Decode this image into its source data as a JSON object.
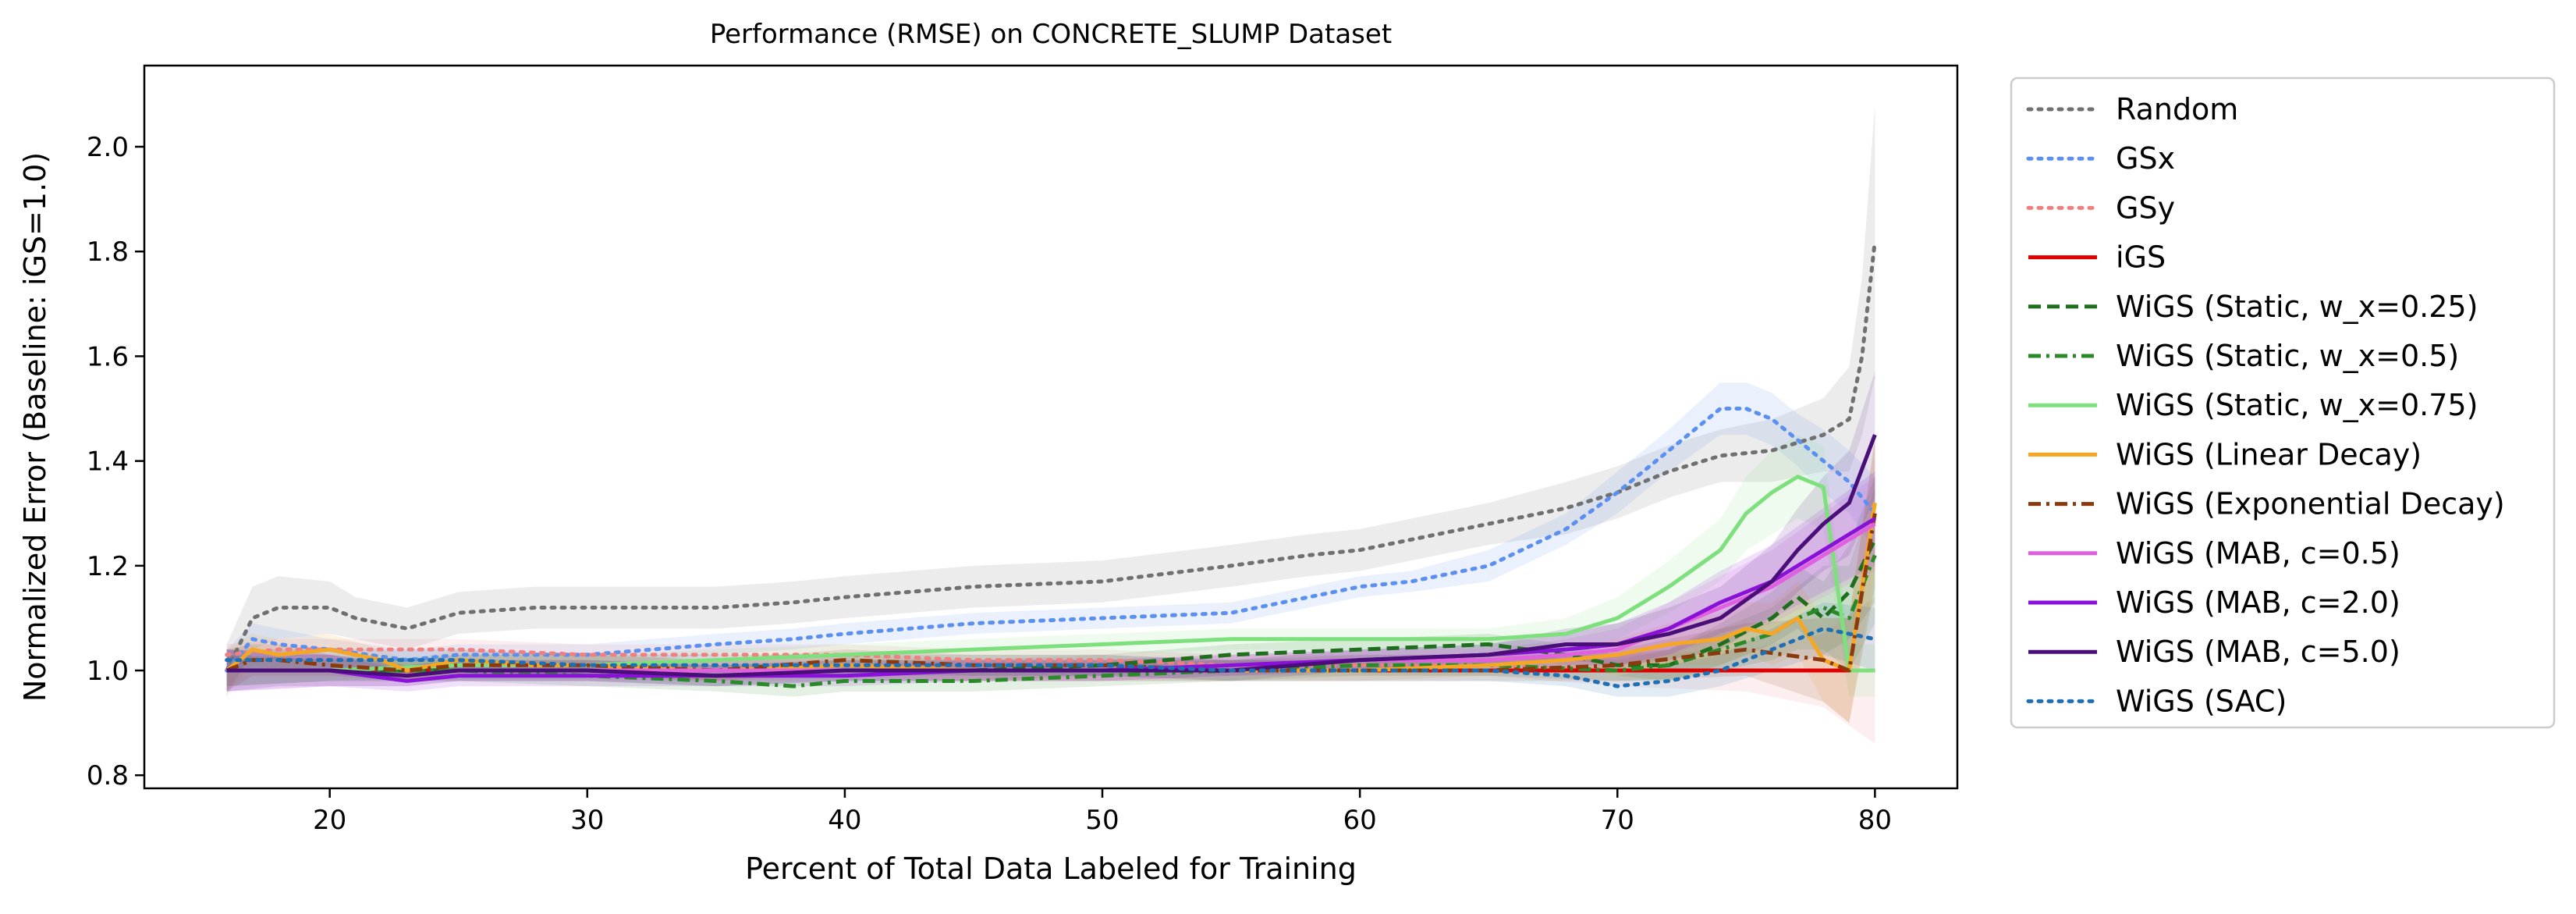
{
  "chart_data": {
    "type": "line",
    "title": "Performance (RMSE) on CONCRETE_SLUMP Dataset",
    "xlabel": "Percent of Total Data Labeled for Training",
    "ylabel": "Normalized Error (Baseline: iGS=1.0)",
    "xlim": [
      12.8,
      83.2
    ],
    "ylim": [
      0.775,
      2.155
    ],
    "xticks": [
      20,
      30,
      40,
      50,
      60,
      70,
      80
    ],
    "yticks": [
      0.8,
      1.0,
      1.2,
      1.4,
      1.6,
      1.8,
      2.0
    ],
    "legend_position": "outside-right",
    "grid": false,
    "series": [
      {
        "name": "Random",
        "color": "#707070",
        "dash": "dotted",
        "x": [
          16,
          17,
          18,
          20,
          21,
          23,
          25,
          28,
          30,
          35,
          38,
          40,
          45,
          50,
          55,
          58,
          60,
          62,
          65,
          68,
          70,
          72,
          74,
          76,
          78,
          79,
          79.5,
          80
        ],
        "y": [
          1.0,
          1.1,
          1.12,
          1.12,
          1.1,
          1.08,
          1.11,
          1.12,
          1.12,
          1.12,
          1.13,
          1.14,
          1.16,
          1.17,
          1.2,
          1.22,
          1.23,
          1.25,
          1.28,
          1.31,
          1.34,
          1.38,
          1.41,
          1.42,
          1.45,
          1.48,
          1.6,
          1.82
        ],
        "band": [
          0.05,
          0.06,
          0.06,
          0.05,
          0.04,
          0.04,
          0.04,
          0.04,
          0.04,
          0.04,
          0.04,
          0.04,
          0.04,
          0.04,
          0.04,
          0.04,
          0.04,
          0.04,
          0.04,
          0.05,
          0.05,
          0.05,
          0.05,
          0.06,
          0.07,
          0.1,
          0.15,
          0.26
        ]
      },
      {
        "name": "GSx",
        "color": "#5b8ff0",
        "dash": "dotted",
        "x": [
          16,
          17,
          18,
          20,
          23,
          25,
          28,
          30,
          35,
          38,
          40,
          45,
          50,
          55,
          58,
          60,
          62,
          65,
          68,
          70,
          72,
          74,
          75,
          76,
          77,
          78,
          79,
          80
        ],
        "y": [
          1.0,
          1.06,
          1.05,
          1.04,
          1.02,
          1.03,
          1.03,
          1.03,
          1.05,
          1.06,
          1.07,
          1.09,
          1.1,
          1.11,
          1.14,
          1.16,
          1.17,
          1.2,
          1.27,
          1.34,
          1.42,
          1.5,
          1.5,
          1.48,
          1.44,
          1.4,
          1.36,
          1.3
        ],
        "band": [
          0.04,
          0.03,
          0.03,
          0.02,
          0.02,
          0.02,
          0.02,
          0.02,
          0.02,
          0.02,
          0.02,
          0.02,
          0.02,
          0.02,
          0.02,
          0.02,
          0.02,
          0.03,
          0.03,
          0.04,
          0.04,
          0.05,
          0.05,
          0.05,
          0.05,
          0.06,
          0.06,
          0.07
        ]
      },
      {
        "name": "GSy",
        "color": "#f08080",
        "dash": "dotted",
        "x": [
          16,
          18,
          20,
          25,
          30,
          35,
          40,
          45,
          50,
          55,
          60,
          65,
          70,
          75,
          78,
          80
        ],
        "y": [
          1.03,
          1.04,
          1.04,
          1.04,
          1.03,
          1.03,
          1.03,
          1.02,
          1.02,
          1.01,
          1.01,
          1.01,
          1.0,
          1.0,
          1.0,
          1.0
        ],
        "band": [
          0.02,
          0.02,
          0.02,
          0.02,
          0.02,
          0.02,
          0.02,
          0.02,
          0.02,
          0.02,
          0.02,
          0.02,
          0.03,
          0.04,
          0.07,
          0.14
        ]
      },
      {
        "name": "iGS",
        "color": "#e00000",
        "dash": "solid",
        "x": [
          16,
          80
        ],
        "y": [
          1.0,
          1.0
        ],
        "band": [
          0.0,
          0.0
        ]
      },
      {
        "name": "WiGS (Static, w_x=0.25)",
        "color": "#1e6e1e",
        "dash": "dashed",
        "x": [
          16,
          20,
          25,
          30,
          35,
          40,
          45,
          50,
          55,
          60,
          65,
          68,
          70,
          72,
          74,
          76,
          77,
          78,
          79,
          80
        ],
        "y": [
          1.0,
          1.0,
          1.0,
          1.0,
          0.99,
          1.0,
          1.0,
          1.01,
          1.03,
          1.04,
          1.05,
          1.03,
          1.01,
          1.01,
          1.05,
          1.1,
          1.14,
          1.1,
          1.15,
          1.25
        ],
        "band": [
          0.03,
          0.02,
          0.02,
          0.02,
          0.02,
          0.02,
          0.02,
          0.02,
          0.02,
          0.02,
          0.02,
          0.02,
          0.02,
          0.03,
          0.04,
          0.05,
          0.06,
          0.07,
          0.09,
          0.12
        ]
      },
      {
        "name": "WiGS (Static, w_x=0.5)",
        "color": "#2a8a2a",
        "dash": "dashdot",
        "x": [
          16,
          20,
          25,
          30,
          35,
          38,
          40,
          45,
          50,
          55,
          60,
          65,
          70,
          72,
          74,
          76,
          77,
          78,
          79,
          80
        ],
        "y": [
          1.0,
          1.0,
          1.0,
          0.99,
          0.98,
          0.97,
          0.98,
          0.98,
          0.99,
          1.0,
          1.01,
          1.01,
          1.0,
          1.01,
          1.04,
          1.07,
          1.1,
          1.12,
          1.1,
          1.22
        ],
        "band": [
          0.03,
          0.02,
          0.02,
          0.02,
          0.02,
          0.02,
          0.02,
          0.02,
          0.02,
          0.02,
          0.02,
          0.02,
          0.02,
          0.03,
          0.04,
          0.05,
          0.06,
          0.08,
          0.1,
          0.13
        ]
      },
      {
        "name": "WiGS (Static, w_x=0.75)",
        "color": "#7de07d",
        "dash": "solid",
        "x": [
          16,
          20,
          25,
          30,
          35,
          40,
          45,
          50,
          55,
          60,
          65,
          68,
          70,
          72,
          74,
          75,
          76,
          77,
          78,
          79,
          80
        ],
        "y": [
          1.0,
          1.0,
          1.01,
          1.01,
          1.02,
          1.03,
          1.04,
          1.05,
          1.06,
          1.06,
          1.06,
          1.07,
          1.1,
          1.16,
          1.23,
          1.3,
          1.34,
          1.37,
          1.35,
          1.0,
          1.0
        ],
        "band": [
          0.03,
          0.02,
          0.02,
          0.02,
          0.02,
          0.02,
          0.02,
          0.02,
          0.02,
          0.02,
          0.02,
          0.03,
          0.04,
          0.05,
          0.06,
          0.07,
          0.08,
          0.08,
          0.08,
          0.05,
          0.05
        ]
      },
      {
        "name": "WiGS (Linear Decay)",
        "color": "#f5a623",
        "dash": "solid",
        "x": [
          16,
          17,
          18,
          20,
          22,
          23,
          25,
          28,
          30,
          35,
          40,
          45,
          50,
          55,
          60,
          65,
          68,
          70,
          72,
          74,
          75,
          76,
          77,
          78,
          79,
          80
        ],
        "y": [
          1.0,
          1.04,
          1.03,
          1.04,
          1.02,
          1.0,
          1.02,
          1.01,
          1.01,
          1.0,
          1.01,
          1.0,
          1.0,
          1.0,
          1.0,
          1.01,
          1.02,
          1.03,
          1.05,
          1.06,
          1.08,
          1.07,
          1.1,
          1.02,
          1.0,
          1.32
        ],
        "band": [
          0.04,
          0.03,
          0.03,
          0.03,
          0.02,
          0.02,
          0.02,
          0.02,
          0.02,
          0.02,
          0.02,
          0.02,
          0.02,
          0.02,
          0.02,
          0.02,
          0.02,
          0.03,
          0.04,
          0.05,
          0.05,
          0.06,
          0.07,
          0.08,
          0.1,
          0.13
        ]
      },
      {
        "name": "WiGS (Exponential Decay)",
        "color": "#8b3a0e",
        "dash": "dashdot",
        "x": [
          16,
          17,
          18,
          20,
          23,
          25,
          30,
          35,
          40,
          45,
          50,
          55,
          60,
          65,
          70,
          75,
          78,
          79,
          80
        ],
        "y": [
          1.0,
          1.02,
          1.02,
          1.01,
          1.0,
          1.01,
          1.01,
          1.0,
          1.02,
          1.01,
          1.01,
          1.0,
          1.0,
          1.0,
          1.01,
          1.04,
          1.02,
          1.0,
          1.3
        ],
        "band": [
          0.04,
          0.03,
          0.03,
          0.02,
          0.02,
          0.02,
          0.02,
          0.02,
          0.02,
          0.02,
          0.02,
          0.02,
          0.02,
          0.02,
          0.03,
          0.05,
          0.08,
          0.1,
          0.14
        ]
      },
      {
        "name": "WiGS (MAB, c=0.5)",
        "color": "#e060e0",
        "dash": "solid",
        "x": [
          16,
          20,
          23,
          25,
          30,
          35,
          40,
          45,
          50,
          55,
          60,
          65,
          68,
          70,
          72,
          74,
          76,
          78,
          80
        ],
        "y": [
          1.0,
          1.0,
          0.99,
          1.0,
          1.0,
          1.0,
          1.0,
          1.0,
          1.0,
          1.01,
          1.02,
          1.02,
          1.03,
          1.04,
          1.08,
          1.12,
          1.16,
          1.22,
          1.28
        ],
        "band": [
          0.04,
          0.03,
          0.02,
          0.02,
          0.02,
          0.02,
          0.02,
          0.02,
          0.02,
          0.02,
          0.02,
          0.02,
          0.03,
          0.04,
          0.05,
          0.06,
          0.07,
          0.08,
          0.09
        ]
      },
      {
        "name": "WiGS (MAB, c=2.0)",
        "color": "#8a12d8",
        "dash": "solid",
        "x": [
          16,
          20,
          23,
          25,
          30,
          35,
          40,
          45,
          50,
          55,
          60,
          65,
          68,
          70,
          72,
          74,
          76,
          78,
          80
        ],
        "y": [
          1.0,
          1.0,
          0.98,
          0.99,
          0.99,
          0.99,
          0.99,
          1.0,
          1.0,
          1.01,
          1.02,
          1.03,
          1.04,
          1.05,
          1.08,
          1.13,
          1.17,
          1.23,
          1.29
        ],
        "band": [
          0.04,
          0.03,
          0.02,
          0.02,
          0.02,
          0.02,
          0.02,
          0.02,
          0.02,
          0.02,
          0.02,
          0.02,
          0.03,
          0.04,
          0.05,
          0.06,
          0.07,
          0.08,
          0.09
        ]
      },
      {
        "name": "WiGS (MAB, c=5.0)",
        "color": "#4a0e78",
        "dash": "solid",
        "x": [
          16,
          18,
          20,
          23,
          25,
          30,
          35,
          40,
          45,
          50,
          55,
          60,
          65,
          68,
          70,
          72,
          74,
          76,
          77,
          78,
          79,
          80
        ],
        "y": [
          1.0,
          1.0,
          1.0,
          0.99,
          1.0,
          1.0,
          0.99,
          1.0,
          1.0,
          1.0,
          1.0,
          1.02,
          1.03,
          1.05,
          1.05,
          1.07,
          1.1,
          1.17,
          1.23,
          1.28,
          1.32,
          1.45
        ],
        "band": [
          0.04,
          0.03,
          0.03,
          0.02,
          0.02,
          0.02,
          0.02,
          0.02,
          0.02,
          0.02,
          0.02,
          0.02,
          0.02,
          0.03,
          0.04,
          0.05,
          0.06,
          0.07,
          0.08,
          0.09,
          0.1,
          0.12
        ]
      },
      {
        "name": "WiGS (SAC)",
        "color": "#1f6fb4",
        "dash": "dotted",
        "x": [
          16,
          20,
          25,
          30,
          35,
          40,
          45,
          50,
          55,
          60,
          65,
          68,
          70,
          72,
          74,
          76,
          78,
          80
        ],
        "y": [
          1.02,
          1.02,
          1.02,
          1.01,
          1.01,
          1.01,
          1.01,
          1.01,
          1.0,
          1.0,
          1.0,
          0.99,
          0.97,
          0.98,
          1.0,
          1.04,
          1.08,
          1.06
        ],
        "band": [
          0.02,
          0.02,
          0.02,
          0.02,
          0.02,
          0.02,
          0.02,
          0.02,
          0.02,
          0.02,
          0.02,
          0.02,
          0.02,
          0.03,
          0.03,
          0.04,
          0.05,
          0.06
        ]
      }
    ]
  }
}
